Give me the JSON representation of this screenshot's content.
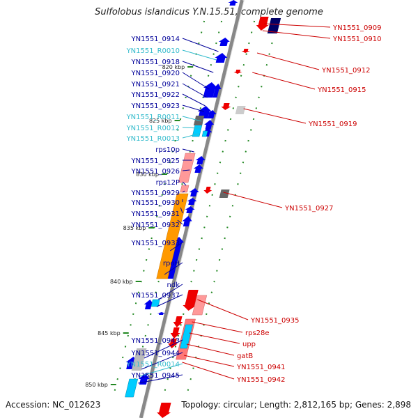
{
  "title": "Sulfolobus islandicus Y.N.15.51, complete genome",
  "footer": {
    "accession": "Accession: NC_012623",
    "summary": "Topology: circular; Length: 2,812,165 bp; Genes: 2,898"
  },
  "colors": {
    "forward_cds": "#0000ee",
    "reverse_cds": "#ee0000",
    "rna": "#00ccff",
    "forward_label": "#000099",
    "reverse_label": "#cc0000",
    "rna_label": "#33bbcc",
    "backbone": "#888888",
    "orf_orange": "#ff9900",
    "orf_pink": "#ff9999",
    "orf_gray": "#999999",
    "tick_green": "#228822"
  },
  "ticks": [
    "820 kbp",
    "825 kbp",
    "830 kbp",
    "835 kbp",
    "840 kbp",
    "845 kbp",
    "850 kbp"
  ],
  "left_labels": [
    {
      "text": "YN1551_0914",
      "kind": "cds"
    },
    {
      "text": "YN1551_R0010",
      "kind": "rna"
    },
    {
      "text": "YN1551_0918",
      "kind": "cds"
    },
    {
      "text": "YN1551_0920",
      "kind": "cds"
    },
    {
      "text": "YN1551_0921",
      "kind": "cds"
    },
    {
      "text": "YN1551_0922",
      "kind": "cds"
    },
    {
      "text": "YN1551_0923",
      "kind": "cds"
    },
    {
      "text": "YN1551_R0011",
      "kind": "rna"
    },
    {
      "text": "YN1551_R0012",
      "kind": "rna"
    },
    {
      "text": "YN1551_R0013",
      "kind": "rna"
    },
    {
      "text": "rps10p",
      "kind": "cds"
    },
    {
      "text": "YN1551_0925",
      "kind": "cds"
    },
    {
      "text": "YN1551_0926",
      "kind": "cds"
    },
    {
      "text": "rps12P",
      "kind": "cds"
    },
    {
      "text": "YN1551_0929",
      "kind": "cds"
    },
    {
      "text": "YN1551_0930",
      "kind": "cds"
    },
    {
      "text": "YN1551_0931",
      "kind": "cds"
    },
    {
      "text": "YN1551_0932",
      "kind": "cds"
    },
    {
      "text": "YN1551_0933",
      "kind": "cds"
    },
    {
      "text": "rpoH",
      "kind": "cds"
    },
    {
      "text": "ndk",
      "kind": "cds"
    },
    {
      "text": "YN1551_0937",
      "kind": "cds"
    },
    {
      "text": "YN1551_0943",
      "kind": "cds"
    },
    {
      "text": "YN1551_0944",
      "kind": "cds"
    },
    {
      "text": "YN1551_R0014",
      "kind": "rna"
    },
    {
      "text": "YN1551_0945",
      "kind": "cds"
    }
  ],
  "right_labels": [
    {
      "text": "YN1551_0909"
    },
    {
      "text": "YN1551_0910"
    },
    {
      "text": "YN1551_0912"
    },
    {
      "text": "YN1551_0915"
    },
    {
      "text": "YN1551_0919"
    },
    {
      "text": "YN1551_0927"
    },
    {
      "text": "YN1551_0935"
    },
    {
      "text": "rps28e"
    },
    {
      "text": "upp"
    },
    {
      "text": "gatB"
    },
    {
      "text": "YN1551_0941"
    },
    {
      "text": "YN1551_0942"
    }
  ]
}
